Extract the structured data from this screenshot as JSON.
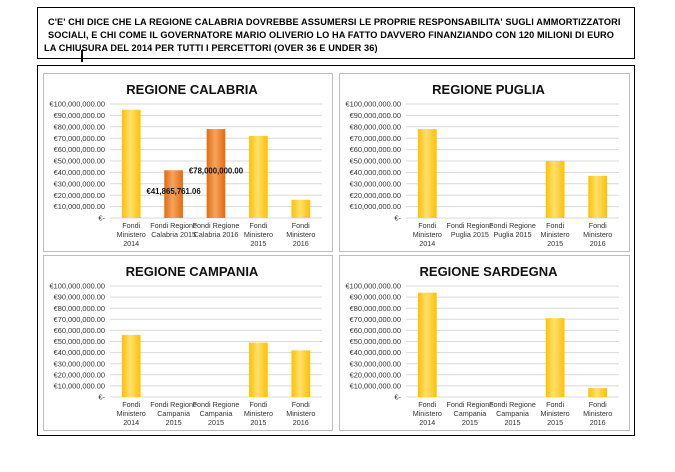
{
  "header": {
    "line1": "C'E' CHI DICE CHE LA REGIONE  CALABRIA DOVREBBE  ASSUMERSI  LE PROPRIE  RESPONSABILITA'  SUGLI AMMORTIZZATORI",
    "line2": "SOCIALI,  E CHI COME IL GOVERNATORE  MARIO OLIVERIO LO HA FATTO DAVVERO FINANZIANDO  CON 120 MILIONI DI EURO",
    "line3": "LA CHIUSURA DEL 2014 PER TUTTI  I PERCETTORI  (OVER 36 E UNDER 36)"
  },
  "colors": {
    "yellow": "#FFC000",
    "yellow_light": "#FFE070",
    "orange": "#E46C0A",
    "orange_light": "#F4A460",
    "grid": "#d9d9d9"
  },
  "chart_data": [
    {
      "type": "bar",
      "title": "REGIONE CALABRIA",
      "categories": [
        [
          "Fondi",
          "Ministero",
          "2014"
        ],
        [
          "Fondi Regione",
          "Calabria 2015"
        ],
        [
          "Fondi Regione",
          "Calabria 2016"
        ],
        [
          "Fondi",
          "Ministero",
          "2015"
        ],
        [
          "Fondi",
          "Ministero",
          "2016"
        ]
      ],
      "values": [
        95000000,
        41865761.06,
        78000000,
        72000000,
        16000000
      ],
      "bar_colors": [
        "yellow",
        "orange",
        "orange",
        "yellow",
        "yellow"
      ],
      "data_labels": [
        "",
        "€41,865,761.06",
        "€78,000,000.00",
        "",
        ""
      ],
      "ylim": [
        0,
        100000000
      ],
      "yticks": [
        "€-",
        "€10,000,000.00",
        "€20,000,000.00",
        "€30,000,000.00",
        "€40,000,000.00",
        "€50,000,000.00",
        "€60,000,000.00",
        "€70,000,000.00",
        "€80,000,000.00",
        "€90,000,000.00",
        "€100,000,000.00"
      ],
      "grid": true
    },
    {
      "type": "bar",
      "title": "REGIONE PUGLIA",
      "categories": [
        [
          "Fondi",
          "Ministero",
          "2014"
        ],
        [
          "Fondi Regione",
          "Puglia 2015"
        ],
        [
          "Fondi Regione",
          "Puglia 2015"
        ],
        [
          "Fondi",
          "Ministero",
          "2015"
        ],
        [
          "Fondi",
          "Ministero",
          "2016"
        ]
      ],
      "values": [
        78000000,
        0,
        0,
        50000000,
        37000000
      ],
      "bar_colors": [
        "yellow",
        "yellow",
        "yellow",
        "yellow",
        "yellow"
      ],
      "data_labels": [
        "",
        "",
        "",
        "",
        ""
      ],
      "ylim": [
        0,
        100000000
      ],
      "yticks": [
        "€-",
        "€10,000,000.00",
        "€20,000,000.00",
        "€30,000,000.00",
        "€40,000,000.00",
        "€50,000,000.00",
        "€60,000,000.00",
        "€70,000,000.00",
        "€80,000,000.00",
        "€90,000,000.00",
        "€100,000,000.00"
      ],
      "grid": true
    },
    {
      "type": "bar",
      "title": "REGIONE CAMPANIA",
      "categories": [
        [
          "Fondi",
          "Ministero",
          "2014"
        ],
        [
          "Fondi Regione",
          "Campania",
          "2015"
        ],
        [
          "Fondi Regione",
          "Campania",
          "2015"
        ],
        [
          "Fondi",
          "Ministero",
          "2015"
        ],
        [
          "Fondi",
          "Ministero",
          "2016"
        ]
      ],
      "values": [
        56000000,
        0,
        0,
        49000000,
        42000000
      ],
      "bar_colors": [
        "yellow",
        "yellow",
        "yellow",
        "yellow",
        "yellow"
      ],
      "data_labels": [
        "",
        "",
        "",
        "",
        ""
      ],
      "ylim": [
        0,
        100000000
      ],
      "yticks": [
        "€-",
        "€10,000,000.00",
        "€20,000,000.00",
        "€30,000,000.00",
        "€40,000,000.00",
        "€50,000,000.00",
        "€60,000,000.00",
        "€70,000,000.00",
        "€80,000,000.00",
        "€90,000,000.00",
        "€100,000,000.00"
      ],
      "grid": true
    },
    {
      "type": "bar",
      "title": "REGIONE SARDEGNA",
      "categories": [
        [
          "Fondi",
          "Ministero",
          "2014"
        ],
        [
          "Fondi Regione",
          "Campania",
          "2015"
        ],
        [
          "Fondi Regione",
          "Campania",
          "2015"
        ],
        [
          "Fondi",
          "Ministero",
          "2015"
        ],
        [
          "Fondi",
          "Ministero",
          "2016"
        ]
      ],
      "values": [
        94000000,
        0,
        0,
        71000000,
        8000000
      ],
      "bar_colors": [
        "yellow",
        "yellow",
        "yellow",
        "yellow",
        "yellow"
      ],
      "data_labels": [
        "",
        "",
        "",
        "",
        ""
      ],
      "ylim": [
        0,
        100000000
      ],
      "yticks": [
        "€-",
        "€10,000,000.00",
        "€20,000,000.00",
        "€30,000,000.00",
        "€40,000,000.00",
        "€50,000,000.00",
        "€60,000,000.00",
        "€70,000,000.00",
        "€80,000,000.00",
        "€90,000,000.00",
        "€100,000,000.00"
      ],
      "grid": true
    }
  ]
}
